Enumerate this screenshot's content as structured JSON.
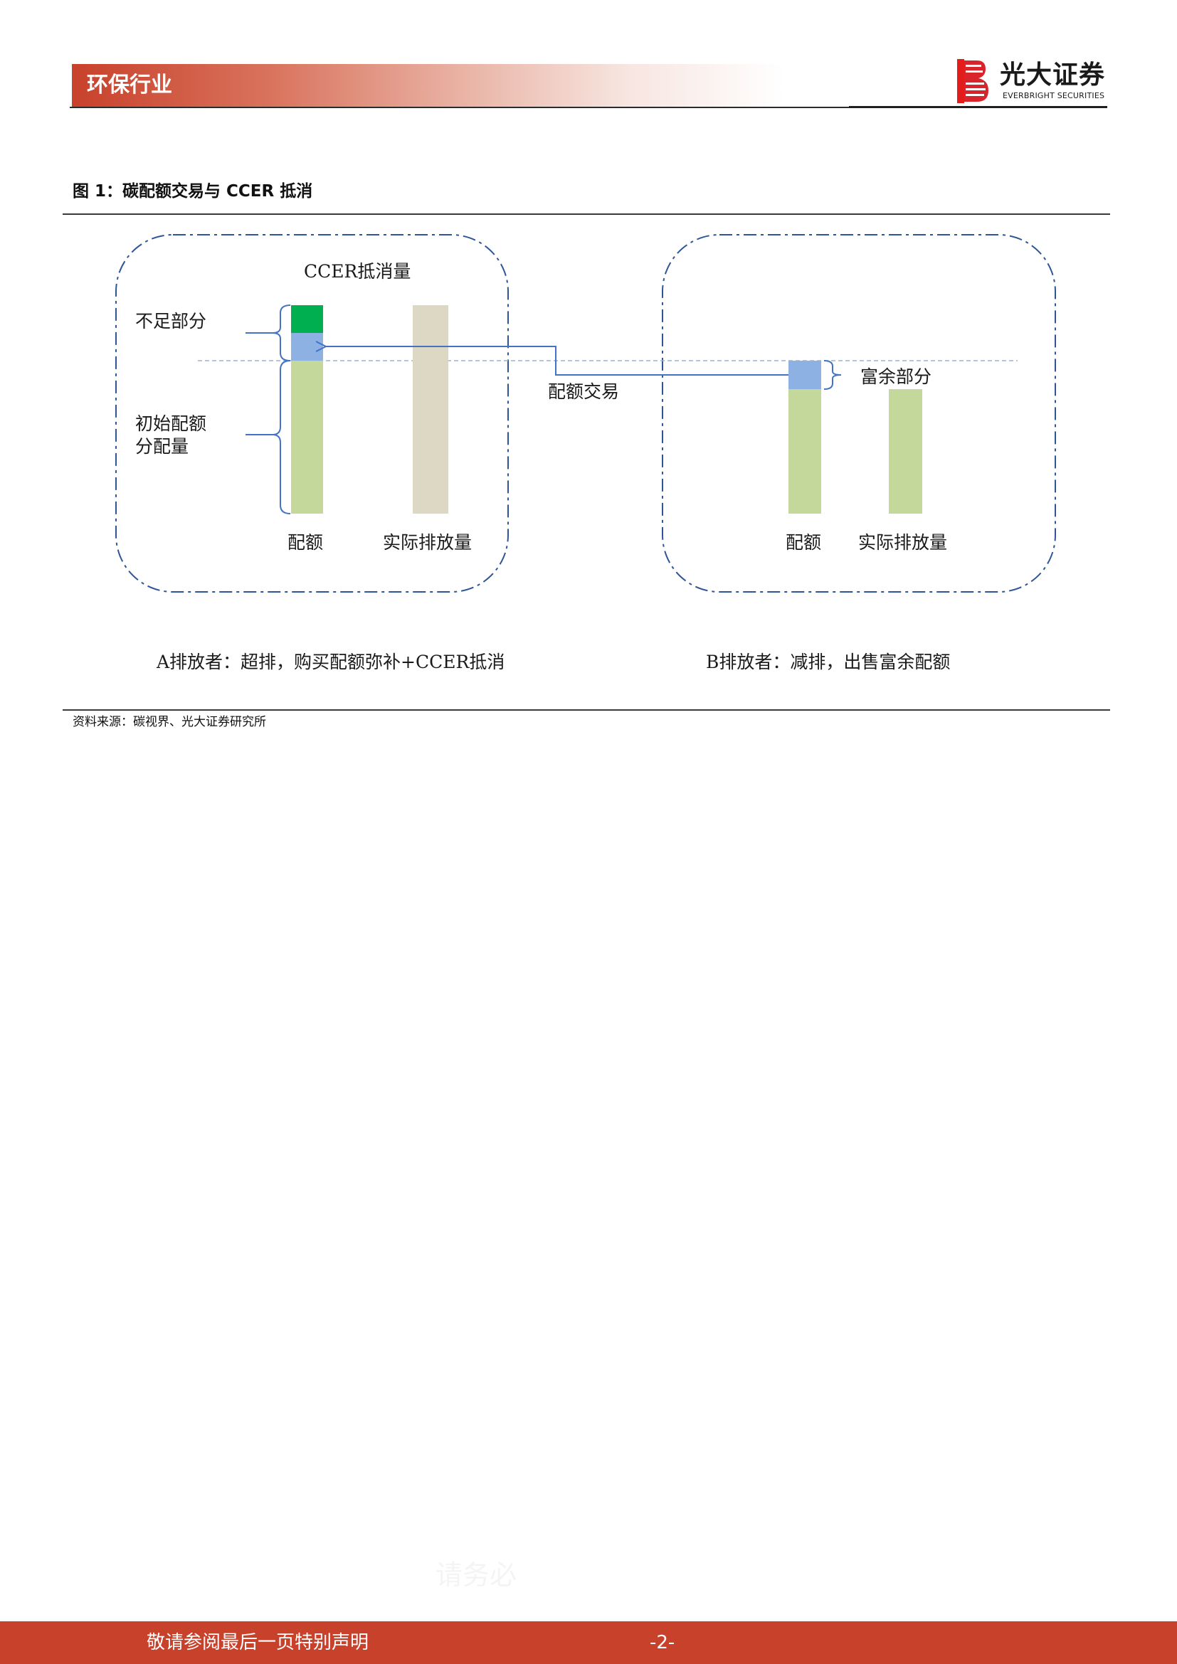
{
  "header": {
    "section_title": "环保行业",
    "logo_cn": "光大证券",
    "logo_en": "EVERBRIGHT SECURITIES"
  },
  "figure": {
    "title": "图 1：碳配额交易与 CCER 抵消",
    "source": "资料来源：碳视界、光大证券研究所",
    "emitter_a": {
      "ccer_label": "CCER抵消量",
      "shortfall_label": "不足部分",
      "initial_allocation_label": [
        "初始配额",
        "分配量"
      ],
      "quota_label": "配额",
      "actual_label": "实际排放量",
      "caption": "A排放者：超排，购买配额弥补+CCER抵消"
    },
    "emitter_b": {
      "surplus_label": "富余部分",
      "quota_label": "配额",
      "actual_label": "实际排放量",
      "caption": "B排放者：减排，出售富余配额"
    },
    "trade_label": "配额交易",
    "colors": {
      "quota": "#c5d89c",
      "ccer": "#00b050",
      "traded": "#8eb1e3",
      "actual_a": "#ddd8c3",
      "actual_b": "#c5d89c",
      "box_border": "#2e5597",
      "arrow": "#4472c4"
    }
  },
  "watermark": "请务必",
  "footer": {
    "disclaimer": "敬请参阅最后一页特别声明",
    "page": "-2-"
  }
}
